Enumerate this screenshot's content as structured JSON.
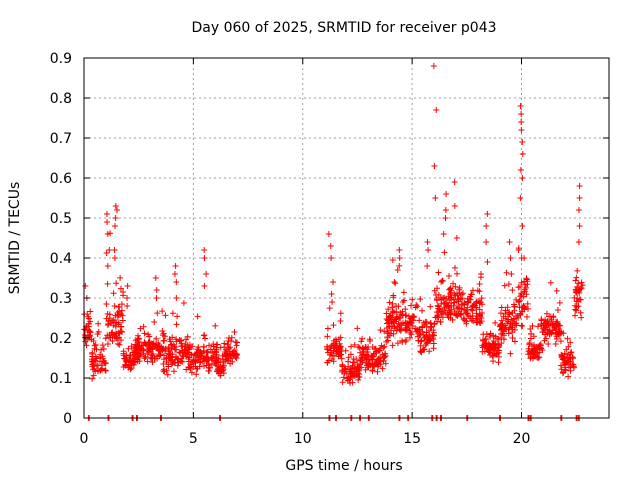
{
  "chart_data": {
    "type": "scatter",
    "title": "Day 060 of 2025, SRMTID for receiver p043",
    "xlabel": "GPS time / hours",
    "ylabel": "SRMTID / TECUs",
    "xlim": [
      0,
      24
    ],
    "ylim": [
      0,
      0.9
    ],
    "x_ticks": [
      0,
      5,
      10,
      15,
      20
    ],
    "x_tick_labels": [
      "0",
      "5",
      "10",
      "15",
      "20"
    ],
    "y_ticks": [
      0,
      0.1,
      0.2,
      0.3,
      0.4,
      0.5,
      0.6,
      0.7,
      0.8,
      0.9
    ],
    "y_tick_labels": [
      "0",
      "0.1",
      "0.2",
      "0.3",
      "0.4",
      "0.5",
      "0.6",
      "0.7",
      "0.8",
      "0.9"
    ],
    "grid": true,
    "marker": "+",
    "color": "#ff0000",
    "segments": [
      {
        "start": 0.0,
        "end": 0.35,
        "base": 0.22,
        "spread": 0.08
      },
      {
        "start": 0.35,
        "end": 1.0,
        "base": 0.14,
        "spread": 0.07
      },
      {
        "start": 1.0,
        "end": 1.8,
        "base": 0.24,
        "spread": 0.13
      },
      {
        "start": 1.8,
        "end": 2.3,
        "base": 0.15,
        "spread": 0.06
      },
      {
        "start": 2.3,
        "end": 3.6,
        "base": 0.17,
        "spread": 0.06
      },
      {
        "start": 3.6,
        "end": 5.0,
        "base": 0.16,
        "spread": 0.07
      },
      {
        "start": 5.0,
        "end": 6.1,
        "base": 0.15,
        "spread": 0.06
      },
      {
        "start": 6.1,
        "end": 6.4,
        "base": 0.13,
        "spread": 0.04
      },
      {
        "start": 6.4,
        "end": 7.0,
        "base": 0.16,
        "spread": 0.05
      },
      {
        "start": 11.1,
        "end": 11.8,
        "base": 0.17,
        "spread": 0.06
      },
      {
        "start": 11.8,
        "end": 12.6,
        "base": 0.12,
        "spread": 0.05
      },
      {
        "start": 12.6,
        "end": 13.8,
        "base": 0.15,
        "spread": 0.05
      },
      {
        "start": 13.8,
        "end": 15.2,
        "base": 0.24,
        "spread": 0.08
      },
      {
        "start": 15.2,
        "end": 16.0,
        "base": 0.2,
        "spread": 0.07
      },
      {
        "start": 16.0,
        "end": 17.0,
        "base": 0.28,
        "spread": 0.09
      },
      {
        "start": 17.0,
        "end": 18.2,
        "base": 0.28,
        "spread": 0.08
      },
      {
        "start": 18.2,
        "end": 19.0,
        "base": 0.18,
        "spread": 0.06
      },
      {
        "start": 19.0,
        "end": 19.8,
        "base": 0.24,
        "spread": 0.09
      },
      {
        "start": 19.8,
        "end": 20.3,
        "base": 0.3,
        "spread": 0.12
      },
      {
        "start": 20.3,
        "end": 20.9,
        "base": 0.17,
        "spread": 0.05
      },
      {
        "start": 20.9,
        "end": 21.8,
        "base": 0.22,
        "spread": 0.07
      },
      {
        "start": 21.8,
        "end": 22.4,
        "base": 0.14,
        "spread": 0.05
      },
      {
        "start": 22.4,
        "end": 22.8,
        "base": 0.3,
        "spread": 0.12
      }
    ],
    "spikes": [
      {
        "x": 0.1,
        "y": [
          0.3,
          0.33,
          0.26,
          0.22
        ]
      },
      {
        "x": 1.1,
        "y": [
          0.42,
          0.46,
          0.49,
          0.51,
          0.38
        ]
      },
      {
        "x": 1.45,
        "y": [
          0.48,
          0.5,
          0.52,
          0.53,
          0.42,
          0.4
        ]
      },
      {
        "x": 1.95,
        "y": [
          0.3,
          0.33,
          0.28
        ]
      },
      {
        "x": 3.3,
        "y": [
          0.32,
          0.35,
          0.3
        ]
      },
      {
        "x": 4.2,
        "y": [
          0.34,
          0.36,
          0.38,
          0.3
        ]
      },
      {
        "x": 5.55,
        "y": [
          0.36,
          0.4,
          0.42,
          0.33
        ]
      },
      {
        "x": 11.25,
        "y": [
          0.4,
          0.43,
          0.46
        ]
      },
      {
        "x": 11.35,
        "y": [
          0.29,
          0.31,
          0.34
        ]
      },
      {
        "x": 14.4,
        "y": [
          0.37,
          0.4,
          0.42
        ]
      },
      {
        "x": 15.7,
        "y": [
          0.38,
          0.42,
          0.44
        ]
      },
      {
        "x": 16.05,
        "y": [
          0.55,
          0.63,
          0.77,
          0.88
        ]
      },
      {
        "x": 16.5,
        "y": [
          0.46,
          0.5,
          0.52,
          0.56
        ]
      },
      {
        "x": 17.0,
        "y": [
          0.53,
          0.59,
          0.45
        ]
      },
      {
        "x": 18.4,
        "y": [
          0.39,
          0.44,
          0.48,
          0.51
        ]
      },
      {
        "x": 19.5,
        "y": [
          0.36,
          0.4,
          0.44
        ]
      },
      {
        "x": 20.0,
        "y": [
          0.4,
          0.48,
          0.55,
          0.6,
          0.62,
          0.66,
          0.69,
          0.72,
          0.74,
          0.76,
          0.78
        ]
      },
      {
        "x": 22.6,
        "y": [
          0.44,
          0.48,
          0.52,
          0.55,
          0.58
        ]
      }
    ],
    "zero_markers": [
      0.2,
      1.1,
      2.2,
      2.4,
      3.5,
      6.2,
      11.2,
      11.5,
      12.2,
      12.6,
      13.0,
      14.4,
      14.8,
      15.9,
      16.1,
      16.3,
      17.5,
      19.0,
      20.3,
      20.4,
      21.8,
      22.5,
      22.6
    ],
    "random_seed": 60
  }
}
